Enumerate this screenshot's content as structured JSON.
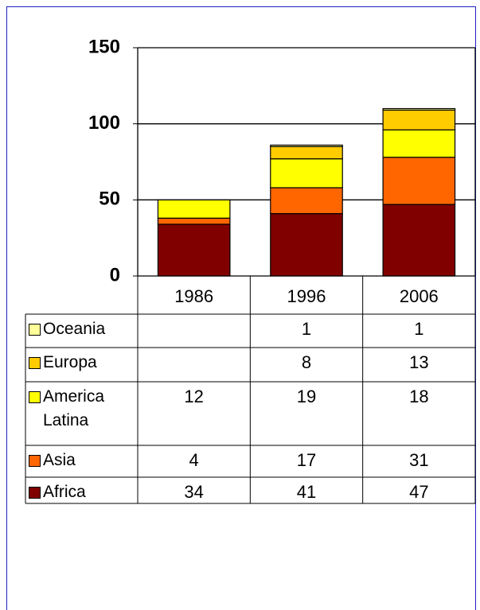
{
  "chart_data": {
    "type": "bar",
    "stacked": true,
    "categories": [
      "1986",
      "1996",
      "2006"
    ],
    "series": [
      {
        "name": "Africa",
        "color": "#800000",
        "values": [
          34,
          41,
          47
        ]
      },
      {
        "name": "Asia",
        "color": "#ff6600",
        "values": [
          4,
          17,
          31
        ]
      },
      {
        "name": "America Latina",
        "color": "#ffff00",
        "values": [
          12,
          19,
          18
        ]
      },
      {
        "name": "Europa",
        "color": "#ffcc00",
        "values": [
          null,
          8,
          13
        ]
      },
      {
        "name": "Oceania",
        "color": "#ffff99",
        "values": [
          null,
          1,
          1
        ]
      }
    ],
    "ylim": [
      0,
      150
    ],
    "yticks": [
      0,
      50,
      100,
      150
    ],
    "grid": true,
    "data_table": true
  }
}
